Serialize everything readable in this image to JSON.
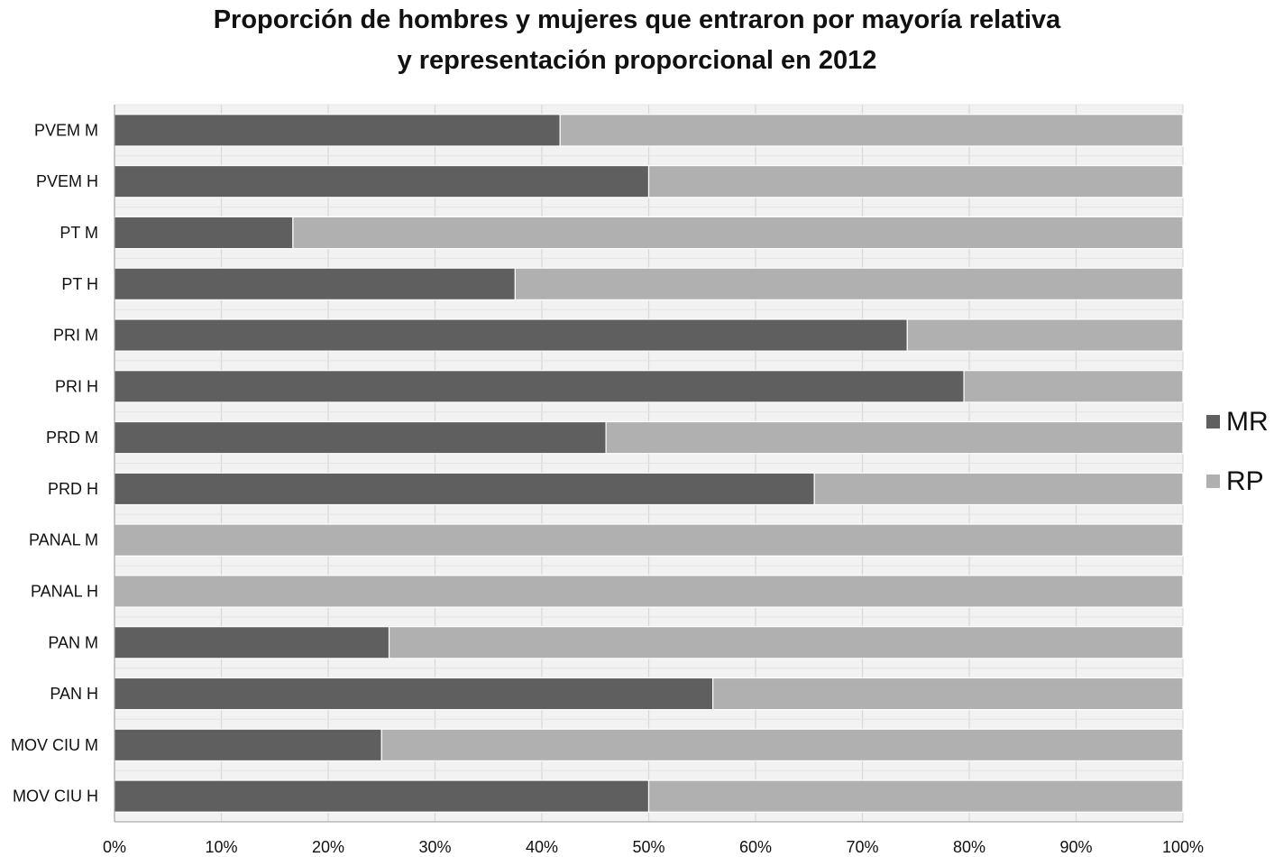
{
  "chart_data": {
    "type": "bar",
    "orientation": "horizontal",
    "stacked": "percent",
    "title_lines": [
      "Proporción de hombres y mujeres que entraron por mayoría relativa",
      "y representación proporcional en 2012"
    ],
    "categories": [
      "PVEM M",
      "PVEM H",
      "PT M",
      "PT H",
      "PRI M",
      "PRI H",
      "PRD M",
      "PRD H",
      "PANAL M",
      "PANAL H",
      "PAN M",
      "PAN H",
      "MOV CIU M",
      "MOV CIU H"
    ],
    "series": [
      {
        "name": "MR",
        "color": "#5f5f5f",
        "values": [
          41.7,
          50,
          16.7,
          37.5,
          74.2,
          79.5,
          46,
          65.5,
          0,
          0,
          25.7,
          56,
          25,
          50
        ]
      },
      {
        "name": "RP",
        "color": "#b0b0b0",
        "values": [
          58.3,
          50,
          83.3,
          62.5,
          25.8,
          20.5,
          54,
          34.5,
          100,
          100,
          74.3,
          44,
          75,
          50
        ]
      }
    ],
    "x_ticks": [
      "0%",
      "10%",
      "20%",
      "30%",
      "40%",
      "50%",
      "60%",
      "70%",
      "80%",
      "90%",
      "100%"
    ],
    "xlim": [
      0,
      100
    ],
    "grid": true,
    "legend_position": "right"
  }
}
